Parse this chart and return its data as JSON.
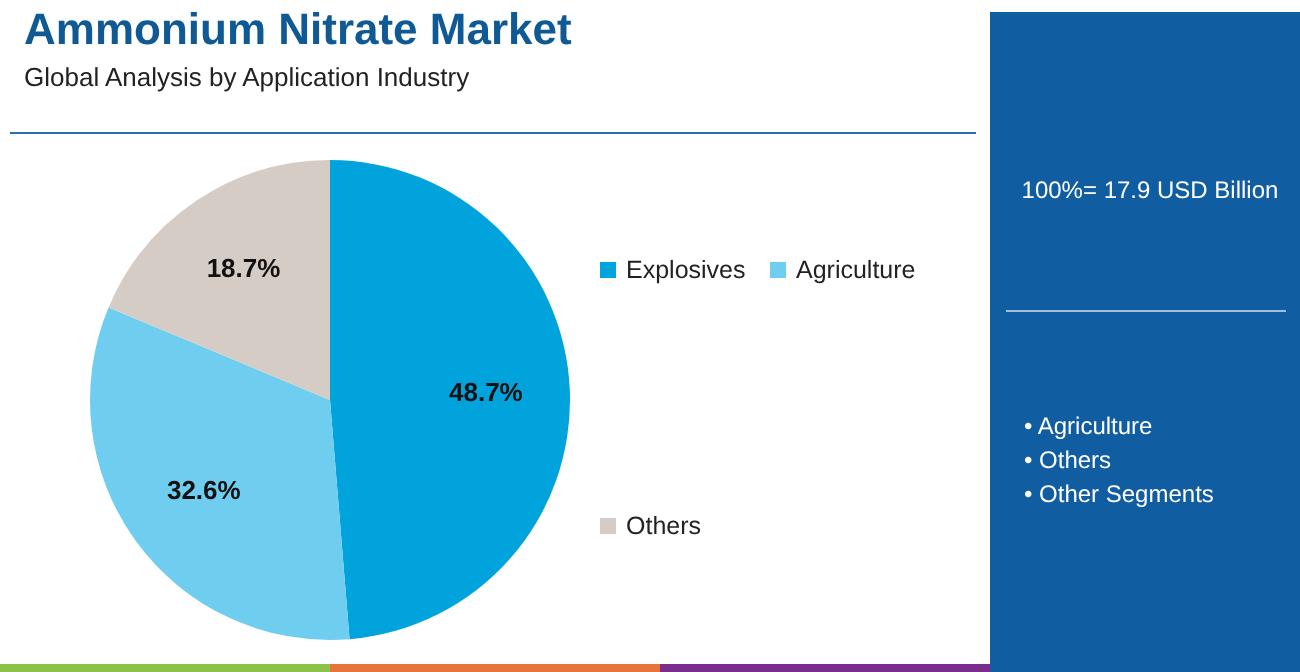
{
  "chart_data": {
    "type": "pie",
    "title": "Ammonium Nitrate Market",
    "subtitle": "Global Analysis by Application Industry",
    "categories": [
      "Explosives",
      "Agriculture",
      "Others"
    ],
    "values": [
      48.7,
      32.6,
      18.7
    ],
    "colors": [
      "#00a3dc",
      "#6fcdf0",
      "#d6ccc6"
    ],
    "value_labels": [
      "48.7%",
      "32.6%",
      "18.7%"
    ],
    "legend": "right",
    "annotations": [
      "100%= 17.9 USD Billion",
      "• Agriculture",
      "• Others",
      "• Other Segments"
    ]
  }
}
